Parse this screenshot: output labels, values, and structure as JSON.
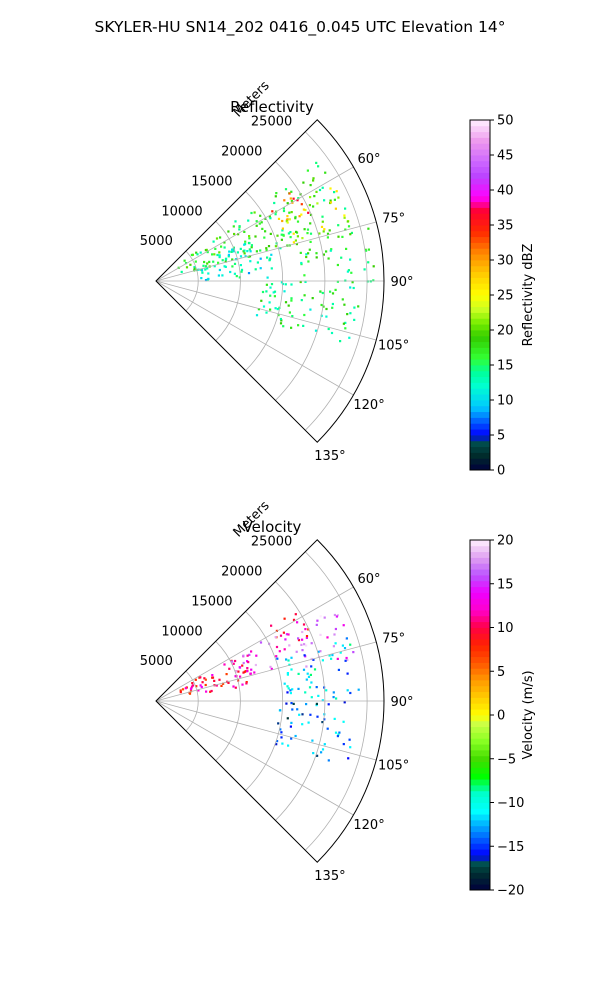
{
  "figure": {
    "suptitle": "SKYLER-HU  SN14_202  0416_0.045 UTC Elevation 14°"
  },
  "chart_data": [
    {
      "type": "polar-sector",
      "title": "Reflectivity",
      "range_axis_label": "Meters",
      "range_ticks": [
        5000,
        10000,
        15000,
        20000,
        25000
      ],
      "range_max": 27000,
      "angle_ticks_deg": [
        60,
        75,
        90,
        105,
        120,
        135
      ],
      "angle_range_deg": [
        45,
        135
      ],
      "grid": true,
      "colorbar": {
        "label": "Reflectivity dBZ",
        "min": 0,
        "max": 50,
        "ticks": [
          0,
          5,
          10,
          15,
          20,
          25,
          30,
          35,
          40,
          45,
          50
        ],
        "colormap": "pyart_NWSRef"
      },
      "echo_regions": [
        {
          "az_deg": [
            52,
            75
          ],
          "range_m": [
            3000,
            24000
          ],
          "value": 17
        },
        {
          "az_deg": [
            56,
            66
          ],
          "range_m": [
            16000,
            20000
          ],
          "value": 33
        },
        {
          "az_deg": [
            60,
            74
          ],
          "range_m": [
            16000,
            24000
          ],
          "value": 24
        },
        {
          "az_deg": [
            74,
            90
          ],
          "range_m": [
            17000,
            26000
          ],
          "value": 16
        },
        {
          "az_deg": [
            66,
            88
          ],
          "range_m": [
            5000,
            14000
          ],
          "value": 12
        },
        {
          "az_deg": [
            90,
            110
          ],
          "range_m": [
            12000,
            24000
          ],
          "value": 15
        }
      ]
    },
    {
      "type": "polar-sector",
      "title": "Velocity",
      "range_axis_label": "Meters",
      "range_ticks": [
        5000,
        10000,
        15000,
        20000,
        25000
      ],
      "range_max": 27000,
      "angle_ticks_deg": [
        60,
        75,
        90,
        105,
        120,
        135
      ],
      "angle_range_deg": [
        45,
        135
      ],
      "grid": true,
      "colorbar": {
        "label": "Velocity (m/s)",
        "min": -20,
        "max": 20,
        "ticks": [
          -20,
          -15,
          -10,
          -5,
          0,
          5,
          10,
          15,
          20
        ],
        "colormap": "pyart_NWSVel"
      },
      "echo_regions": [
        {
          "az_deg": [
            60,
            80
          ],
          "range_m": [
            3000,
            12000
          ],
          "value": 10
        },
        {
          "az_deg": [
            56,
            68
          ],
          "range_m": [
            16000,
            20000
          ],
          "value": 11
        },
        {
          "az_deg": [
            60,
            74
          ],
          "range_m": [
            10000,
            18000
          ],
          "value": 15
        },
        {
          "az_deg": [
            62,
            78
          ],
          "range_m": [
            18000,
            24000
          ],
          "value": 16
        },
        {
          "az_deg": [
            70,
            90
          ],
          "range_m": [
            15000,
            24000
          ],
          "value": -12
        },
        {
          "az_deg": [
            90,
            110
          ],
          "range_m": [
            14000,
            24000
          ],
          "value": -14
        }
      ]
    }
  ]
}
